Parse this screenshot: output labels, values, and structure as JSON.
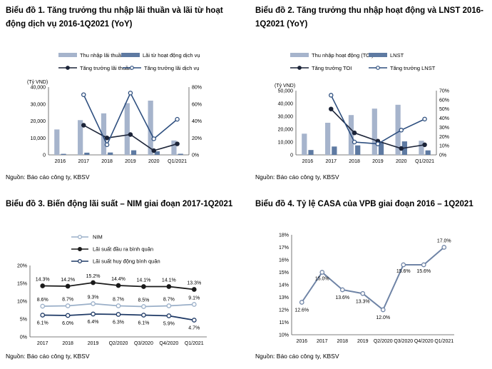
{
  "chart_data": [
    {
      "type": "bar",
      "title_line1": "Biểu đồ 1. Tăng trưởng thu nhập lãi thuần và lãi từ hoạt",
      "title_line2": "động dịch vụ 2016-1Q2021 (YoY)",
      "source": "Nguồn: Báo cáo công ty, KBSV",
      "ylabel": "(Tỷ VND)",
      "categories": [
        "2016",
        "2017",
        "2018",
        "2019",
        "2020",
        "Q1/2021"
      ],
      "ylim": [
        0,
        40000
      ],
      "y_ticks": [
        "0",
        "10,000",
        "20,000",
        "30,000",
        "40,000"
      ],
      "y2lim": [
        0,
        80
      ],
      "y2_ticks": [
        "0%",
        "20%",
        "40%",
        "60%",
        "80%"
      ],
      "legend": "top",
      "bar_series": [
        {
          "name": "Thu nhập lãi thuần",
          "color": "#a6b4cc",
          "values": [
            15000,
            20500,
            24500,
            30500,
            32000,
            8500
          ]
        },
        {
          "name": "Lãi từ hoạt động dịch vụ",
          "color": "#5e7aa2",
          "values": [
            600,
            1300,
            1400,
            2700,
            2100,
            650
          ]
        }
      ],
      "line_series": [
        {
          "name": "Tăng trưởng lãi thuần",
          "color": "#1c2438",
          "values": [
            null,
            35,
            20,
            24,
            5,
            13
          ]
        },
        {
          "name": "Tăng trưởng lãi dịch vụ",
          "color": "#2e4f7f",
          "values": [
            null,
            71,
            12,
            73,
            19,
            42
          ]
        }
      ]
    },
    {
      "type": "bar",
      "title_line1": "Biểu đồ 2. Tăng trưởng thu nhập hoạt động và LNST 2016-",
      "title_line2": "1Q2021 (YoY)",
      "source": "Nguồn: Báo cáo công ty, KBSV",
      "ylabel": "(Tỷ VND)",
      "categories": [
        "2016",
        "2017",
        "2018",
        "2019",
        "2020",
        "Q1/2021"
      ],
      "ylim": [
        0,
        50000
      ],
      "y_ticks": [
        "0",
        "10,000",
        "20,000",
        "30,000",
        "40,000",
        "50,000"
      ],
      "y2lim": [
        0,
        70
      ],
      "y2_ticks": [
        "0%",
        "10%",
        "20%",
        "30%",
        "40%",
        "50%",
        "60%",
        "70%"
      ],
      "legend": "top",
      "bar_series": [
        {
          "name": "Thu nhập hoạt động (TOI)",
          "color": "#a6b4cc",
          "values": [
            16500,
            25000,
            31000,
            36000,
            39000,
            11000
          ]
        },
        {
          "name": "LNST",
          "color": "#5e7aa2",
          "values": [
            3800,
            6500,
            7400,
            10000,
            10500,
            3500
          ]
        }
      ],
      "line_series": [
        {
          "name": "Tăng trưởng TOI",
          "color": "#1c2438",
          "values": [
            null,
            50,
            24,
            15,
            7,
            11
          ]
        },
        {
          "name": "Tăng trưởng LNST",
          "color": "#2e4f7f",
          "values": [
            null,
            65,
            14,
            12,
            27,
            39
          ]
        }
      ]
    },
    {
      "type": "line",
      "title_line1": "Biểu đồ 3. Biến động lãi suất – NIM giai đoạn 2017-1Q2021",
      "title_line2": "",
      "source": "Nguồn: Báo cáo công ty, KBSV",
      "categories": [
        "2017",
        "2018",
        "2019",
        "Q2/2020",
        "Q3/2020",
        "Q4/2020",
        "Q1/2021"
      ],
      "ylim": [
        0,
        20
      ],
      "y_ticks": [
        "0%",
        "5%",
        "10%",
        "15%",
        "20%"
      ],
      "legend": "top-left",
      "series": [
        {
          "name": "NIM",
          "color": "#9aafc8",
          "marker": "open",
          "values": [
            8.6,
            8.7,
            9.3,
            8.7,
            8.5,
            8.7,
            9.1
          ],
          "labels": [
            "8.6%",
            "8.7%",
            "9.3%",
            "8.7%",
            "8.5%",
            "8.7%",
            "9.1%"
          ]
        },
        {
          "name": "Lãi suất đầu ra bình quân",
          "color": "#1a1a1a",
          "marker": "filled",
          "values": [
            14.3,
            14.2,
            15.2,
            14.4,
            14.1,
            14.1,
            13.3
          ],
          "labels": [
            "14.3%",
            "14.2%",
            "15.2%",
            "14.4%",
            "14.1%",
            "14.1%",
            "13.3%"
          ]
        },
        {
          "name": "Lãi suất huy động bình quân",
          "color": "#1f3a66",
          "marker": "open",
          "values": [
            6.1,
            6.0,
            6.4,
            6.3,
            6.1,
            5.9,
            4.7
          ],
          "labels": [
            "6.1%",
            "6.0%",
            "6.4%",
            "6.3%",
            "6.1%",
            "5.9%",
            "4.7%"
          ]
        }
      ]
    },
    {
      "type": "line",
      "title_line1": "Biểu đồ 4. Tỷ lệ CASA của VPB giai đoạn 2016 – 1Q2021",
      "title_line2": "",
      "source": "Nguồn: Báo cáo công ty, KBSV",
      "categories": [
        "2016",
        "2017",
        "2018",
        "2019",
        "Q2/2020",
        "Q3/2020",
        "Q4/2020",
        "Q1/2021"
      ],
      "ylim": [
        10,
        18
      ],
      "y_ticks": [
        "10%",
        "11%",
        "12%",
        "13%",
        "14%",
        "15%",
        "16%",
        "17%",
        "18%"
      ],
      "series": [
        {
          "name": "CASA",
          "color": "#6f84a6",
          "marker": "open",
          "values": [
            12.6,
            15.0,
            13.6,
            13.3,
            12.0,
            15.6,
            15.6,
            17.0
          ],
          "labels": [
            "12.6%",
            "15.0%",
            "13.6%",
            "13.3%",
            "12.0%",
            "15.6%",
            "15.6%",
            "17.0%"
          ]
        }
      ]
    }
  ]
}
